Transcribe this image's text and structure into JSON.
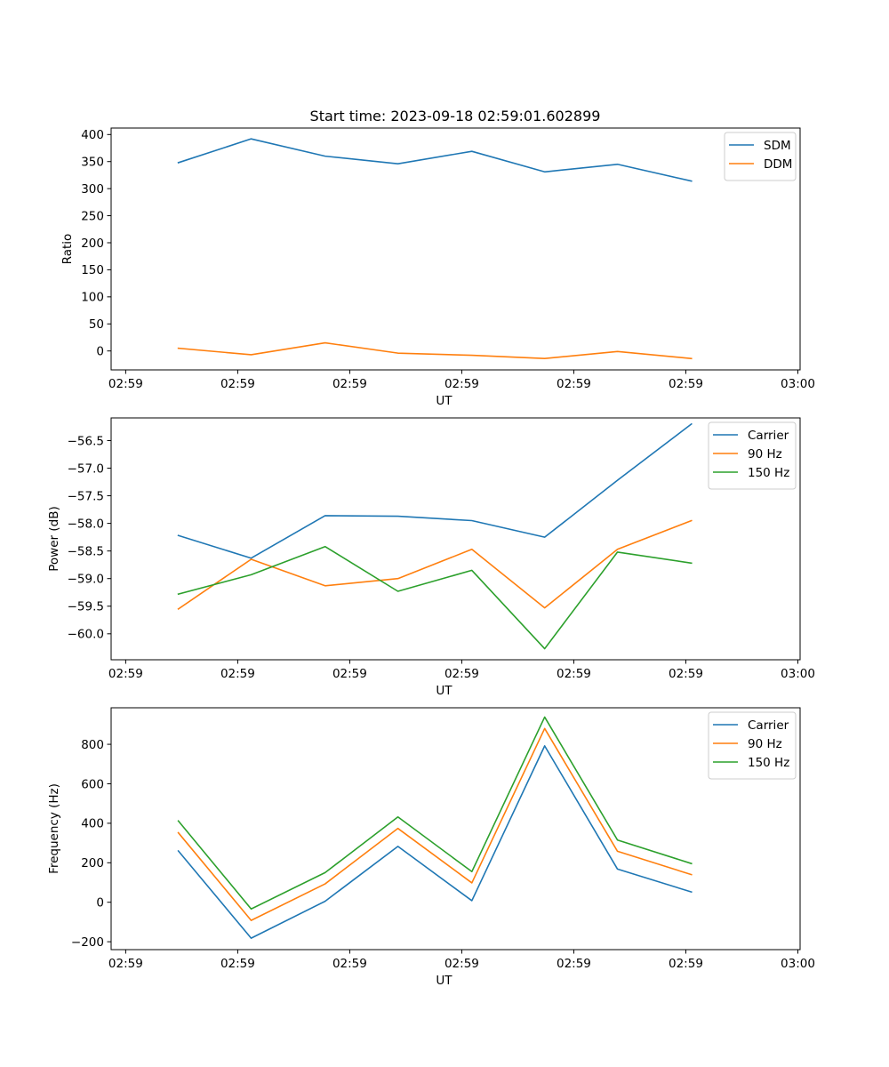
{
  "chart_data": [
    {
      "type": "line",
      "title": "Start time: 2023-09-18 02:59:01.602899",
      "xlabel": "UT",
      "ylabel": "Ratio",
      "x_tick_labels": [
        "02:59",
        "02:59",
        "02:59",
        "02:59",
        "02:59",
        "02:59",
        "03:00"
      ],
      "x_tick_values": [
        0,
        1,
        2,
        3,
        4,
        5,
        6
      ],
      "xlim": [
        -0.13,
        6.02
      ],
      "x": [
        0.47,
        1.12,
        1.78,
        2.43,
        3.09,
        3.74,
        4.39,
        5.05
      ],
      "ylim": [
        -35,
        412
      ],
      "yticks": [
        0,
        50,
        100,
        150,
        200,
        250,
        300,
        350,
        400
      ],
      "y_tick_labels": [
        "0",
        "50",
        "100",
        "150",
        "200",
        "250",
        "300",
        "350",
        "400"
      ],
      "legend_position": "top-right",
      "series": [
        {
          "name": "SDM",
          "color": "#1f77b4",
          "values": [
            348,
            392,
            360,
            346,
            369,
            331,
            345,
            314
          ]
        },
        {
          "name": "DDM",
          "color": "#ff7f0e",
          "values": [
            5,
            -7,
            15,
            -4,
            -8,
            -14,
            -1,
            -14
          ]
        }
      ]
    },
    {
      "type": "line",
      "title": "",
      "xlabel": "UT",
      "ylabel": "Power (dB)",
      "x_tick_labels": [
        "02:59",
        "02:59",
        "02:59",
        "02:59",
        "02:59",
        "02:59",
        "03:00"
      ],
      "x_tick_values": [
        0,
        1,
        2,
        3,
        4,
        5,
        6
      ],
      "xlim": [
        -0.13,
        6.02
      ],
      "x": [
        0.47,
        1.12,
        1.78,
        2.43,
        3.09,
        3.74,
        4.39,
        5.05
      ],
      "ylim": [
        -60.47,
        -56.09
      ],
      "yticks": [
        -60.0,
        -59.5,
        -59.0,
        -58.5,
        -58.0,
        -57.5,
        -57.0,
        -56.5
      ],
      "y_tick_labels": [
        "−60.0",
        "−59.5",
        "−59.0",
        "−58.5",
        "−58.0",
        "−57.5",
        "−57.0",
        "−56.5"
      ],
      "legend_position": "top-right",
      "series": [
        {
          "name": "Carrier",
          "color": "#1f77b4",
          "values": [
            -58.22,
            -58.63,
            -57.86,
            -57.87,
            -57.95,
            -58.25,
            -57.22,
            -56.2
          ]
        },
        {
          "name": "90 Hz",
          "color": "#ff7f0e",
          "values": [
            -59.55,
            -58.65,
            -59.13,
            -59.0,
            -58.47,
            -59.53,
            -58.47,
            -57.95
          ]
        },
        {
          "name": "150 Hz",
          "color": "#2ca02c",
          "values": [
            -59.28,
            -58.93,
            -58.42,
            -59.23,
            -58.85,
            -60.27,
            -58.52,
            -58.72
          ]
        }
      ]
    },
    {
      "type": "line",
      "title": "",
      "xlabel": "UT",
      "ylabel": "Frequency (Hz)",
      "x_tick_labels": [
        "02:59",
        "02:59",
        "02:59",
        "02:59",
        "02:59",
        "02:59",
        "03:00"
      ],
      "x_tick_values": [
        0,
        1,
        2,
        3,
        4,
        5,
        6
      ],
      "xlim": [
        -0.13,
        6.02
      ],
      "x": [
        0.47,
        1.12,
        1.78,
        2.43,
        3.09,
        3.74,
        4.39,
        5.05
      ],
      "ylim": [
        -240,
        985
      ],
      "yticks": [
        -200,
        0,
        200,
        400,
        600,
        800
      ],
      "y_tick_labels": [
        "−200",
        "0",
        "200",
        "400",
        "600",
        "800"
      ],
      "legend_position": "top-right",
      "series": [
        {
          "name": "Carrier",
          "color": "#1f77b4",
          "values": [
            260,
            -182,
            5,
            283,
            8,
            792,
            168,
            52
          ]
        },
        {
          "name": "90 Hz",
          "color": "#ff7f0e",
          "values": [
            352,
            -92,
            93,
            374,
            98,
            880,
            258,
            140
          ]
        },
        {
          "name": "150 Hz",
          "color": "#2ca02c",
          "values": [
            412,
            -34,
            150,
            432,
            155,
            938,
            315,
            196
          ]
        }
      ]
    }
  ]
}
